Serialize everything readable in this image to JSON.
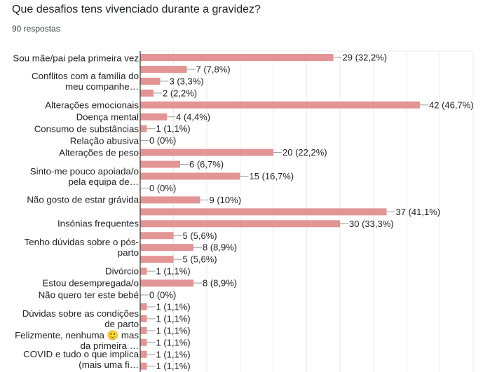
{
  "question": "Que desafios tens vivenciado durante a gravidez?",
  "responses": "90 respostas",
  "chart_data": {
    "type": "bar",
    "orientation": "horizontal",
    "bar_color": "#e39494",
    "grid": true,
    "xlim": [
      0,
      50
    ],
    "x_grid_step": 5,
    "rows": [
      {
        "label": "Sou mãe/pai pela primeira vez",
        "value": 29,
        "text": "29 (32,2%)"
      },
      {
        "label": "",
        "value": 7,
        "text": "7 (7,8%)"
      },
      {
        "label": "Conflitos com a família do meu companhe…",
        "value": 3,
        "text": "3 (3,3%)"
      },
      {
        "label": "",
        "value": 2,
        "text": "2 (2,2%)"
      },
      {
        "label": "Alterações emocionais",
        "value": 42,
        "text": "42 (46,7%)"
      },
      {
        "label": "Doença mental",
        "value": 4,
        "text": "4 (4,4%)"
      },
      {
        "label": "Consumo de substâncias",
        "value": 1,
        "text": "1 (1,1%)"
      },
      {
        "label": "Relação abusiva",
        "value": 0,
        "text": "0 (0%)"
      },
      {
        "label": "Alterações de peso",
        "value": 20,
        "text": "20 (22,2%)"
      },
      {
        "label": "",
        "value": 6,
        "text": "6 (6,7%)"
      },
      {
        "label": "Sinto-me pouco apoiada/o pela equipa de…",
        "value": 15,
        "text": "15 (16,7%)"
      },
      {
        "label": "",
        "value": 0,
        "text": "0 (0%)"
      },
      {
        "label": "Não gosto de estar grávida",
        "value": 9,
        "text": "9 (10%)"
      },
      {
        "label": "",
        "value": 37,
        "text": "37 (41,1%)"
      },
      {
        "label": "Insónias frequentes",
        "value": 30,
        "text": "30 (33,3%)"
      },
      {
        "label": "",
        "value": 5,
        "text": "5 (5,6%)"
      },
      {
        "label": "Tenho dúvidas sobre o pós-parto",
        "value": 8,
        "text": "8 (8,9%)"
      },
      {
        "label": "",
        "value": 5,
        "text": "5 (5,6%)"
      },
      {
        "label": "Divórcio",
        "value": 1,
        "text": "1 (1,1%)"
      },
      {
        "label": "Estou desempregada/o",
        "value": 8,
        "text": "8 (8,9%)"
      },
      {
        "label": "Não quero ter este bebé",
        "value": 0,
        "text": "0 (0%)"
      },
      {
        "label": "",
        "value": 1,
        "text": "1 (1,1%)"
      },
      {
        "label": "Dúvidas sobre as condições de parto",
        "value": 1,
        "text": "1 (1,1%)"
      },
      {
        "label": "",
        "value": 1,
        "text": "1 (1,1%)"
      },
      {
        "label": "Felizmente, nenhuma 🙂 mas da primeira …",
        "value": 1,
        "text": "1 (1,1%)"
      },
      {
        "label": "COVID e tudo o que implica (mais uma fi…",
        "value": 1,
        "text": "1 (1,1%)"
      },
      {
        "label": "",
        "value": 1,
        "text": "1 (1,1%)"
      }
    ]
  }
}
